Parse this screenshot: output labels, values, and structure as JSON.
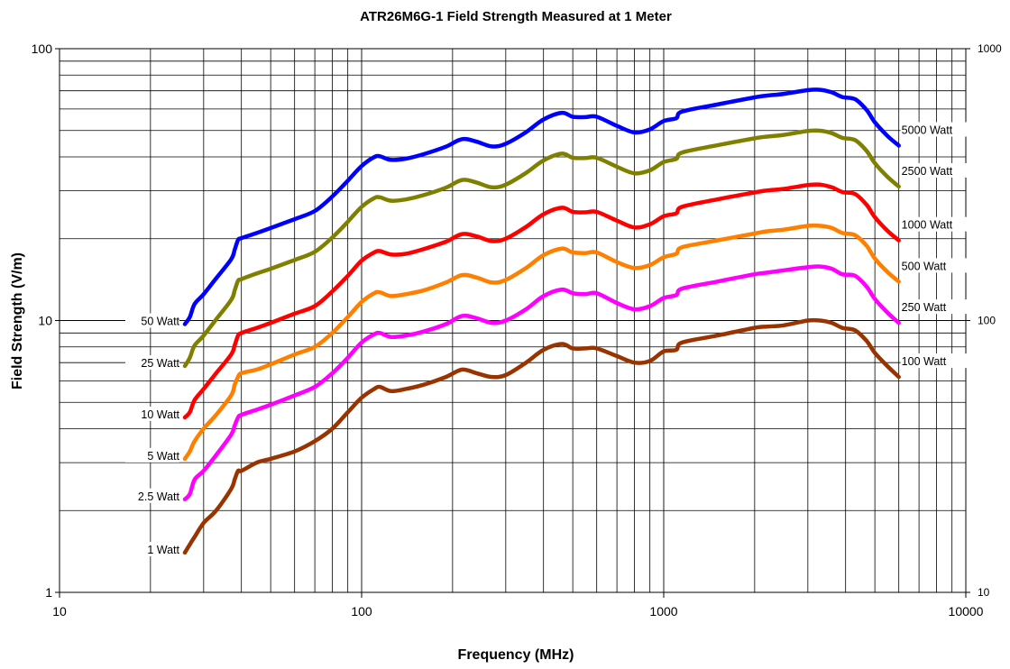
{
  "chart_data": {
    "type": "line",
    "title": "ATR26M6G-1 Field Strength Measured at 1 Meter",
    "xlabel": "Frequency (MHz)",
    "ylabel": "Field Strength (V/m)",
    "xscale": "log",
    "yscale": "log",
    "xlim": [
      10,
      10000
    ],
    "ylim": [
      1,
      100
    ],
    "x_ticks": [
      "10",
      "100",
      "1000",
      "10000"
    ],
    "y_ticks": [
      "1",
      "10",
      "100"
    ],
    "right_axis_ticks": [
      "10",
      "100",
      "1000"
    ],
    "grid": true,
    "left_labels": [
      "50 Watt",
      "25 Watt",
      "10 Watt",
      "5 Watt",
      "2.5 Watt",
      "1 Watt"
    ],
    "series": [
      {
        "name": "5000 Watt",
        "color": "#0000ff",
        "points": [
          [
            26,
            9.7
          ],
          [
            27,
            10.3
          ],
          [
            28,
            11.5
          ],
          [
            30,
            12.5
          ],
          [
            33,
            14.3
          ],
          [
            37,
            16.8
          ],
          [
            38,
            18.2
          ],
          [
            39,
            19.8
          ],
          [
            40,
            20.1
          ],
          [
            45,
            21.0
          ],
          [
            50,
            21.9
          ],
          [
            60,
            23.6
          ],
          [
            70,
            25.3
          ],
          [
            80,
            28.6
          ],
          [
            90,
            32.7
          ],
          [
            100,
            37.0
          ],
          [
            110,
            39.9
          ],
          [
            115,
            40.2
          ],
          [
            125,
            39.0
          ],
          [
            140,
            39.4
          ],
          [
            160,
            40.9
          ],
          [
            190,
            43.6
          ],
          [
            215,
            46.5
          ],
          [
            240,
            45.5
          ],
          [
            270,
            43.7
          ],
          [
            300,
            44.7
          ],
          [
            350,
            49.3
          ],
          [
            400,
            54.9
          ],
          [
            460,
            58.1
          ],
          [
            500,
            56.2
          ],
          [
            550,
            56.0
          ],
          [
            600,
            56.2
          ],
          [
            700,
            52.0
          ],
          [
            800,
            49.2
          ],
          [
            900,
            50.5
          ],
          [
            1000,
            54.2
          ],
          [
            1100,
            55.5
          ],
          [
            1150,
            58.7
          ],
          [
            1500,
            62.3
          ],
          [
            2000,
            66.2
          ],
          [
            2200,
            67.2
          ],
          [
            2500,
            68.2
          ],
          [
            3000,
            70.4
          ],
          [
            3300,
            70.6
          ],
          [
            3600,
            69.1
          ],
          [
            3900,
            66.4
          ],
          [
            4300,
            65.2
          ],
          [
            4700,
            59.4
          ],
          [
            5000,
            53.6
          ],
          [
            5500,
            47.8
          ],
          [
            6000,
            44.0
          ]
        ]
      },
      {
        "name": "2500 Watt",
        "color": "#808000",
        "points": [
          [
            26,
            6.8
          ],
          [
            27,
            7.3
          ],
          [
            28,
            8.1
          ],
          [
            30,
            8.8
          ],
          [
            33,
            10.1
          ],
          [
            37,
            11.9
          ],
          [
            38,
            12.9
          ],
          [
            39,
            14.0
          ],
          [
            40,
            14.2
          ],
          [
            45,
            14.9
          ],
          [
            50,
            15.5
          ],
          [
            60,
            16.7
          ],
          [
            70,
            17.9
          ],
          [
            80,
            20.2
          ],
          [
            90,
            23.1
          ],
          [
            100,
            26.2
          ],
          [
            110,
            28.2
          ],
          [
            115,
            28.4
          ],
          [
            125,
            27.6
          ],
          [
            140,
            27.9
          ],
          [
            160,
            28.9
          ],
          [
            190,
            30.8
          ],
          [
            215,
            32.9
          ],
          [
            240,
            32.2
          ],
          [
            270,
            30.9
          ],
          [
            300,
            31.6
          ],
          [
            350,
            34.9
          ],
          [
            400,
            38.8
          ],
          [
            460,
            41.1
          ],
          [
            500,
            39.7
          ],
          [
            550,
            39.6
          ],
          [
            600,
            39.7
          ],
          [
            700,
            36.8
          ],
          [
            800,
            34.8
          ],
          [
            900,
            35.7
          ],
          [
            1000,
            38.3
          ],
          [
            1100,
            39.3
          ],
          [
            1150,
            41.5
          ],
          [
            1500,
            44.1
          ],
          [
            2000,
            46.8
          ],
          [
            2200,
            47.5
          ],
          [
            2500,
            48.2
          ],
          [
            3000,
            49.8
          ],
          [
            3300,
            49.9
          ],
          [
            3600,
            48.9
          ],
          [
            3900,
            47.0
          ],
          [
            4300,
            46.1
          ],
          [
            4700,
            42.0
          ],
          [
            5000,
            37.9
          ],
          [
            5500,
            33.8
          ],
          [
            6000,
            31.1
          ]
        ]
      },
      {
        "name": "1000 Watt",
        "color": "#ff0000",
        "points": [
          [
            26,
            4.4
          ],
          [
            27,
            4.6
          ],
          [
            28,
            5.1
          ],
          [
            30,
            5.6
          ],
          [
            33,
            6.4
          ],
          [
            37,
            7.5
          ],
          [
            38,
            8.1
          ],
          [
            39,
            8.8
          ],
          [
            40,
            9.0
          ],
          [
            45,
            9.4
          ],
          [
            50,
            9.8
          ],
          [
            60,
            10.6
          ],
          [
            70,
            11.3
          ],
          [
            80,
            12.8
          ],
          [
            90,
            14.6
          ],
          [
            100,
            16.6
          ],
          [
            110,
            17.8
          ],
          [
            115,
            18.0
          ],
          [
            125,
            17.5
          ],
          [
            140,
            17.6
          ],
          [
            160,
            18.3
          ],
          [
            190,
            19.5
          ],
          [
            215,
            20.8
          ],
          [
            240,
            20.4
          ],
          [
            270,
            19.6
          ],
          [
            300,
            20.0
          ],
          [
            350,
            22.1
          ],
          [
            400,
            24.6
          ],
          [
            460,
            26.0
          ],
          [
            500,
            25.1
          ],
          [
            550,
            25.0
          ],
          [
            600,
            25.1
          ],
          [
            700,
            23.3
          ],
          [
            800,
            22.0
          ],
          [
            900,
            22.6
          ],
          [
            1000,
            24.2
          ],
          [
            1100,
            24.8
          ],
          [
            1150,
            26.2
          ],
          [
            1500,
            27.9
          ],
          [
            2000,
            29.6
          ],
          [
            2200,
            30.1
          ],
          [
            2500,
            30.5
          ],
          [
            3000,
            31.5
          ],
          [
            3300,
            31.6
          ],
          [
            3600,
            30.9
          ],
          [
            3900,
            29.7
          ],
          [
            4300,
            29.2
          ],
          [
            4700,
            26.6
          ],
          [
            5000,
            24.0
          ],
          [
            5500,
            21.4
          ],
          [
            6000,
            19.7
          ]
        ]
      },
      {
        "name": "500 Watt",
        "color": "#ff7f00",
        "points": [
          [
            26,
            3.1
          ],
          [
            27,
            3.3
          ],
          [
            28,
            3.6
          ],
          [
            30,
            4.0
          ],
          [
            33,
            4.5
          ],
          [
            37,
            5.3
          ],
          [
            38,
            5.8
          ],
          [
            39,
            6.2
          ],
          [
            40,
            6.4
          ],
          [
            45,
            6.6
          ],
          [
            50,
            6.9
          ],
          [
            60,
            7.5
          ],
          [
            70,
            8.0
          ],
          [
            80,
            9.0
          ],
          [
            90,
            10.3
          ],
          [
            100,
            11.7
          ],
          [
            110,
            12.6
          ],
          [
            115,
            12.7
          ],
          [
            125,
            12.3
          ],
          [
            140,
            12.5
          ],
          [
            160,
            12.9
          ],
          [
            190,
            13.8
          ],
          [
            215,
            14.7
          ],
          [
            240,
            14.4
          ],
          [
            270,
            13.8
          ],
          [
            300,
            14.1
          ],
          [
            350,
            15.6
          ],
          [
            400,
            17.4
          ],
          [
            460,
            18.4
          ],
          [
            500,
            17.8
          ],
          [
            550,
            17.7
          ],
          [
            600,
            17.8
          ],
          [
            700,
            16.4
          ],
          [
            800,
            15.6
          ],
          [
            900,
            16.0
          ],
          [
            1000,
            17.1
          ],
          [
            1100,
            17.6
          ],
          [
            1150,
            18.6
          ],
          [
            1500,
            19.7
          ],
          [
            2000,
            20.9
          ],
          [
            2200,
            21.3
          ],
          [
            2500,
            21.6
          ],
          [
            3000,
            22.3
          ],
          [
            3300,
            22.3
          ],
          [
            3600,
            21.9
          ],
          [
            3900,
            21.0
          ],
          [
            4300,
            20.6
          ],
          [
            4700,
            18.8
          ],
          [
            5000,
            16.9
          ],
          [
            5500,
            15.1
          ],
          [
            6000,
            13.9
          ]
        ]
      },
      {
        "name": "250 Watt",
        "color": "#ff00ff",
        "points": [
          [
            26,
            2.2
          ],
          [
            27,
            2.3
          ],
          [
            28,
            2.6
          ],
          [
            30,
            2.8
          ],
          [
            33,
            3.2
          ],
          [
            37,
            3.8
          ],
          [
            38,
            4.1
          ],
          [
            39,
            4.4
          ],
          [
            40,
            4.5
          ],
          [
            45,
            4.7
          ],
          [
            50,
            4.9
          ],
          [
            60,
            5.3
          ],
          [
            70,
            5.7
          ],
          [
            80,
            6.4
          ],
          [
            90,
            7.3
          ],
          [
            100,
            8.3
          ],
          [
            110,
            8.9
          ],
          [
            115,
            9.0
          ],
          [
            125,
            8.7
          ],
          [
            140,
            8.8
          ],
          [
            160,
            9.1
          ],
          [
            190,
            9.7
          ],
          [
            215,
            10.4
          ],
          [
            240,
            10.2
          ],
          [
            270,
            9.8
          ],
          [
            300,
            10.0
          ],
          [
            350,
            11.0
          ],
          [
            400,
            12.3
          ],
          [
            460,
            13.0
          ],
          [
            500,
            12.6
          ],
          [
            550,
            12.5
          ],
          [
            600,
            12.6
          ],
          [
            700,
            11.6
          ],
          [
            800,
            11.0
          ],
          [
            900,
            11.3
          ],
          [
            1000,
            12.1
          ],
          [
            1100,
            12.4
          ],
          [
            1150,
            13.1
          ],
          [
            1500,
            13.9
          ],
          [
            2000,
            14.8
          ],
          [
            2200,
            15.0
          ],
          [
            2500,
            15.3
          ],
          [
            3000,
            15.7
          ],
          [
            3300,
            15.8
          ],
          [
            3600,
            15.5
          ],
          [
            3900,
            14.8
          ],
          [
            4300,
            14.6
          ],
          [
            4700,
            13.3
          ],
          [
            5000,
            12.0
          ],
          [
            5500,
            10.7
          ],
          [
            6000,
            9.8
          ]
        ]
      },
      {
        "name": "100 Watt",
        "color": "#993300",
        "points": [
          [
            26,
            1.4
          ],
          [
            27,
            1.5
          ],
          [
            28,
            1.6
          ],
          [
            30,
            1.8
          ],
          [
            33,
            2.0
          ],
          [
            37,
            2.4
          ],
          [
            38,
            2.6
          ],
          [
            39,
            2.8
          ],
          [
            40,
            2.8
          ],
          [
            45,
            3.0
          ],
          [
            50,
            3.1
          ],
          [
            60,
            3.3
          ],
          [
            70,
            3.6
          ],
          [
            80,
            4.0
          ],
          [
            90,
            4.6
          ],
          [
            100,
            5.2
          ],
          [
            110,
            5.6
          ],
          [
            115,
            5.7
          ],
          [
            125,
            5.5
          ],
          [
            140,
            5.6
          ],
          [
            160,
            5.8
          ],
          [
            190,
            6.2
          ],
          [
            215,
            6.6
          ],
          [
            240,
            6.4
          ],
          [
            270,
            6.2
          ],
          [
            300,
            6.3
          ],
          [
            350,
            7.0
          ],
          [
            400,
            7.8
          ],
          [
            460,
            8.2
          ],
          [
            500,
            7.9
          ],
          [
            550,
            7.9
          ],
          [
            600,
            7.9
          ],
          [
            700,
            7.4
          ],
          [
            800,
            7.0
          ],
          [
            900,
            7.1
          ],
          [
            1000,
            7.7
          ],
          [
            1100,
            7.8
          ],
          [
            1150,
            8.3
          ],
          [
            1500,
            8.8
          ],
          [
            2000,
            9.4
          ],
          [
            2200,
            9.5
          ],
          [
            2500,
            9.6
          ],
          [
            3000,
            10.0
          ],
          [
            3300,
            10.0
          ],
          [
            3600,
            9.8
          ],
          [
            3900,
            9.4
          ],
          [
            4300,
            9.2
          ],
          [
            4700,
            8.4
          ],
          [
            5000,
            7.6
          ],
          [
            5500,
            6.8
          ],
          [
            6000,
            6.2
          ]
        ]
      }
    ]
  }
}
